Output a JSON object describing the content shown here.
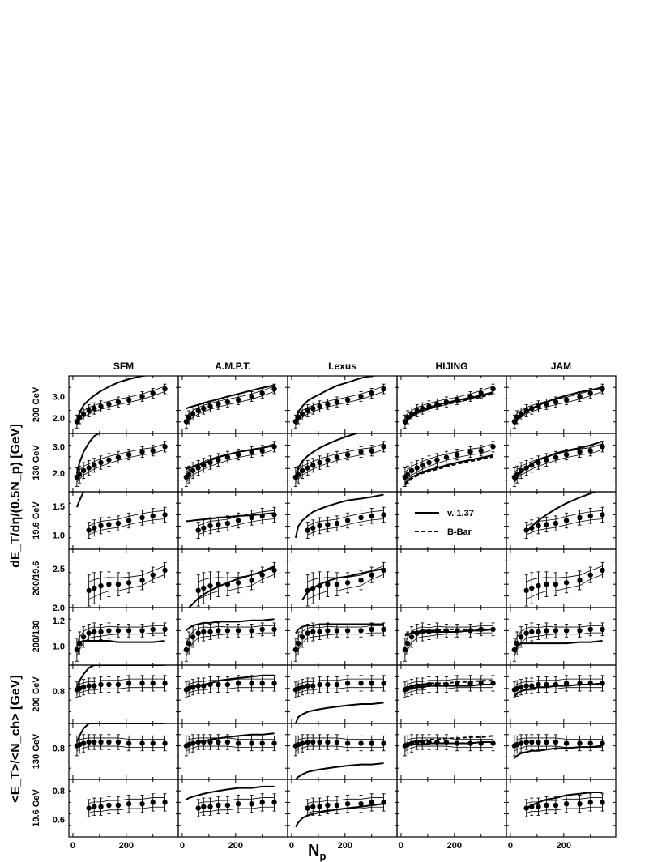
{
  "chart_data": {
    "type": "scatter",
    "title": "",
    "columns": [
      "SFM",
      "A.M.P.T.",
      "Lexus",
      "HIJING",
      "JAM"
    ],
    "xlabel": "N",
    "xlabel_sub": "p",
    "xlim": [
      -15,
      395
    ],
    "x_ticks": [
      "0",
      "200"
    ],
    "ylabel_upper": "dE_T/dη/(0.5N_p) [GeV]",
    "ylabel_lower": "<E_T>/<N_ch> [GeV]",
    "legend": {
      "placement": "inside HIJING 19.6 GeV panel",
      "entries": [
        "v. 1.37",
        "B-Bar"
      ]
    },
    "x": [
      15,
      25,
      40,
      60,
      80,
      105,
      135,
      170,
      210,
      260,
      300,
      345
    ],
    "rows": [
      {
        "label": "200 GeV",
        "ylim": [
          1.3,
          3.95
        ],
        "ticks": [
          "2.0",
          "3.0"
        ],
        "start": 0,
        "y": [
          1.85,
          2.05,
          2.2,
          2.35,
          2.45,
          2.55,
          2.65,
          2.75,
          2.85,
          3.0,
          3.15,
          3.35
        ],
        "err": [
          0.3,
          0.3,
          0.28,
          0.28,
          0.26,
          0.25,
          0.24,
          0.23,
          0.22,
          0.22,
          0.22,
          0.22
        ],
        "models": [
          {
            "name": "SFM",
            "y": [
              1.85,
              2.25,
              2.6,
              2.85,
              3.05,
              3.25,
              3.45,
              3.65,
              3.8,
              3.95,
              4.0,
              4.0
            ]
          },
          {
            "name": "A.M.P.T.",
            "y": [
              2.45,
              2.5,
              2.55,
              2.62,
              2.7,
              2.78,
              2.88,
              3.0,
              3.12,
              3.28,
              3.4,
              3.52
            ]
          },
          {
            "name": "Lexus",
            "y": [
              1.9,
              2.3,
              2.55,
              2.8,
              2.95,
              3.1,
              3.3,
              3.5,
              3.65,
              3.85,
              3.95,
              4.0
            ]
          },
          {
            "name": "HIJING",
            "y": [
              1.75,
              1.95,
              2.15,
              2.3,
              2.4,
              2.5,
              2.6,
              2.72,
              2.82,
              2.95,
              3.05,
              3.2
            ]
          },
          {
            "name": "HIJING B-Bar",
            "y": [
              1.7,
              1.9,
              2.1,
              2.25,
              2.35,
              2.45,
              2.55,
              2.65,
              2.75,
              2.88,
              2.98,
              3.12
            ]
          },
          {
            "name": "JAM",
            "y": [
              1.7,
              1.9,
              2.1,
              2.3,
              2.45,
              2.6,
              2.75,
              2.9,
              3.05,
              3.2,
              3.3,
              3.4
            ]
          }
        ]
      },
      {
        "label": "130 GeV",
        "ylim": [
          1.3,
          3.5
        ],
        "ticks": [
          "2.0",
          "3.0"
        ],
        "start": 0,
        "y": [
          1.85,
          1.95,
          2.1,
          2.2,
          2.3,
          2.4,
          2.5,
          2.6,
          2.7,
          2.8,
          2.85,
          3.0
        ],
        "err": [
          0.35,
          0.32,
          0.3,
          0.28,
          0.26,
          0.25,
          0.24,
          0.22,
          0.2,
          0.2,
          0.2,
          0.2
        ],
        "models": [
          {
            "name": "SFM",
            "y": [
              2.0,
              2.4,
              2.8,
              3.15,
              3.4,
              3.55,
              3.6,
              3.6,
              3.6,
              3.6,
              3.6,
              3.6
            ]
          },
          {
            "name": "A.M.P.T.",
            "y": [
              2.15,
              2.2,
              2.25,
              2.3,
              2.38,
              2.48,
              2.6,
              2.7,
              2.8,
              2.88,
              2.95,
              3.05
            ]
          },
          {
            "name": "Lexus",
            "y": [
              1.85,
              2.2,
              2.45,
              2.65,
              2.8,
              2.95,
              3.1,
              3.25,
              3.4,
              3.55,
              3.6,
              3.6
            ]
          },
          {
            "name": "HIJING",
            "y": [
              1.6,
              1.7,
              1.85,
              1.95,
              2.05,
              2.12,
              2.2,
              2.3,
              2.4,
              2.5,
              2.58,
              2.68
            ]
          },
          {
            "name": "HIJING B-Bar",
            "y": [
              1.55,
              1.65,
              1.8,
              1.9,
              2.0,
              2.07,
              2.15,
              2.25,
              2.35,
              2.45,
              2.52,
              2.62
            ]
          },
          {
            "name": "JAM",
            "y": [
              1.7,
              1.85,
              2.05,
              2.2,
              2.35,
              2.5,
              2.6,
              2.75,
              2.85,
              2.95,
              3.05,
              3.2
            ]
          }
        ]
      },
      {
        "label": "19.6 GeV",
        "ylim": [
          0.75,
          1.75
        ],
        "ticks": [
          "1.0",
          "1.5"
        ],
        "start": 3,
        "y": [
          null,
          null,
          null,
          1.08,
          1.12,
          1.16,
          1.18,
          1.2,
          1.25,
          1.3,
          1.33,
          1.35
        ],
        "err": [
          0,
          0,
          0,
          0.14,
          0.14,
          0.14,
          0.13,
          0.13,
          0.13,
          0.13,
          0.13,
          0.13
        ],
        "models": [
          {
            "name": "SFM",
            "y": [
              1.48,
              1.6,
              1.75,
              1.8,
              1.8,
              1.8,
              1.8,
              1.8,
              1.8,
              1.8,
              1.8,
              1.8
            ]
          },
          {
            "name": "A.M.P.T.",
            "y": [
              1.24,
              1.24,
              1.25,
              1.26,
              1.27,
              1.28,
              1.3,
              1.31,
              1.33,
              1.34,
              1.36,
              1.38
            ]
          },
          {
            "name": "Lexus",
            "y": [
              0.95,
              1.15,
              1.25,
              1.33,
              1.4,
              1.45,
              1.5,
              1.55,
              1.6,
              1.63,
              1.66,
              1.7
            ]
          },
          {
            "name": "HIJING",
            "y": []
          },
          {
            "name": "HIJING B-Bar",
            "y": []
          },
          {
            "name": "JAM",
            "y": [
              null,
              null,
              null,
              1.05,
              1.15,
              1.25,
              1.35,
              1.45,
              1.55,
              1.65,
              1.72,
              1.8
            ]
          }
        ]
      },
      {
        "label": "200/19.6",
        "ylim": [
          2.0,
          2.75
        ],
        "ticks": [
          "2.0",
          "2.5"
        ],
        "start": 3,
        "y": [
          null,
          null,
          null,
          2.22,
          2.25,
          2.28,
          2.3,
          2.3,
          2.32,
          2.35,
          2.42,
          2.48
        ],
        "err": [
          0,
          0,
          0,
          0.2,
          0.2,
          0.18,
          0.16,
          0.15,
          0.13,
          0.12,
          0.1,
          0.1
        ],
        "models": [
          {
            "name": "SFM",
            "y": []
          },
          {
            "name": "A.M.P.T.",
            "y": [
              null,
              2.0,
              2.05,
              2.12,
              2.17,
              2.22,
              2.27,
              2.32,
              2.37,
              2.42,
              2.46,
              2.52
            ]
          },
          {
            "name": "Lexus",
            "y": [
              null,
              null,
              2.1,
              2.2,
              2.25,
              2.3,
              2.34,
              2.38,
              2.4,
              2.44,
              2.47,
              2.5
            ]
          },
          {
            "name": "HIJING",
            "y": []
          },
          {
            "name": "HIJING B-Bar",
            "y": []
          },
          {
            "name": "JAM",
            "y": []
          }
        ]
      },
      {
        "label": "200/130",
        "ylim": [
          0.85,
          1.3
        ],
        "ticks": [
          "1.0",
          "1.2"
        ],
        "start": 0,
        "y": [
          0.97,
          1.02,
          1.07,
          1.1,
          1.11,
          1.11,
          1.12,
          1.12,
          1.12,
          1.12,
          1.13,
          1.13
        ],
        "err": [
          0.09,
          0.09,
          0.08,
          0.07,
          0.07,
          0.06,
          0.06,
          0.05,
          0.05,
          0.05,
          0.05,
          0.05
        ],
        "models": [
          {
            "name": "SFM",
            "y": [
              1.0,
              1.03,
              1.04,
              1.04,
              1.04,
              1.04,
              1.04,
              1.03,
              1.03,
              1.03,
              1.03,
              1.04
            ]
          },
          {
            "name": "A.M.P.T.",
            "y": [
              1.12,
              1.14,
              1.16,
              1.17,
              1.18,
              1.18,
              1.19,
              1.19,
              1.19,
              1.2,
              1.2,
              1.21
            ]
          },
          {
            "name": "Lexus",
            "y": [
              1.1,
              1.13,
              1.15,
              1.16,
              1.16,
              1.17,
              1.17,
              1.17,
              1.17,
              1.17,
              1.17,
              1.17
            ]
          },
          {
            "name": "HIJING",
            "y": [
              1.08,
              1.09,
              1.1,
              1.1,
              1.11,
              1.11,
              1.11,
              1.11,
              1.11,
              1.12,
              1.12,
              1.13
            ]
          },
          {
            "name": "HIJING B-Bar",
            "y": [
              1.09,
              1.1,
              1.11,
              1.11,
              1.12,
              1.12,
              1.12,
              1.13,
              1.13,
              1.13,
              1.13,
              1.13
            ]
          },
          {
            "name": "JAM",
            "y": [
              0.95,
              1.0,
              1.02,
              1.02,
              1.02,
              1.02,
              1.02,
              1.02,
              1.02,
              1.03,
              1.03,
              1.04
            ]
          }
        ]
      },
      {
        "label": "200 GeV",
        "ylim": [
          0.55,
          1.0
        ],
        "ticks": [
          "0.8"
        ],
        "start": 0,
        "y": [
          0.81,
          0.82,
          0.83,
          0.84,
          0.84,
          0.85,
          0.85,
          0.85,
          0.86,
          0.86,
          0.86,
          0.86
        ],
        "err": [
          0.06,
          0.06,
          0.06,
          0.06,
          0.06,
          0.06,
          0.06,
          0.06,
          0.06,
          0.06,
          0.06,
          0.06
        ],
        "models": [
          {
            "name": "SFM",
            "y": [
              0.83,
              0.88,
              0.93,
              0.98,
              1.0,
              1.0,
              1.0,
              1.0,
              1.0,
              1.0,
              1.0,
              1.0
            ]
          },
          {
            "name": "A.M.P.T.",
            "y": [
              0.8,
              0.81,
              0.83,
              0.84,
              0.85,
              0.86,
              0.88,
              0.89,
              0.9,
              0.91,
              0.92,
              0.92
            ]
          },
          {
            "name": "Lexus",
            "y": [
              0.55,
              0.6,
              0.62,
              0.64,
              0.65,
              0.66,
              0.67,
              0.68,
              0.69,
              0.7,
              0.7,
              0.71
            ]
          },
          {
            "name": "HIJING",
            "y": [
              0.8,
              0.81,
              0.82,
              0.83,
              0.83,
              0.84,
              0.84,
              0.84,
              0.84,
              0.84,
              0.85,
              0.85
            ]
          },
          {
            "name": "HIJING B-Bar",
            "y": [
              0.82,
              0.83,
              0.84,
              0.85,
              0.85,
              0.86,
              0.86,
              0.86,
              0.87,
              0.87,
              0.88,
              0.88
            ]
          },
          {
            "name": "JAM",
            "y": [
              0.76,
              0.78,
              0.8,
              0.81,
              0.82,
              0.83,
              0.83,
              0.84,
              0.84,
              0.85,
              0.85,
              0.86
            ]
          }
        ]
      },
      {
        "label": "130 GeV",
        "ylim": [
          0.55,
          1.0
        ],
        "ticks": [
          "0.8"
        ],
        "start": 0,
        "y": [
          0.82,
          0.83,
          0.84,
          0.85,
          0.85,
          0.85,
          0.85,
          0.85,
          0.84,
          0.84,
          0.84,
          0.84
        ],
        "err": [
          0.08,
          0.07,
          0.07,
          0.06,
          0.06,
          0.06,
          0.06,
          0.06,
          0.06,
          0.06,
          0.06,
          0.06
        ],
        "models": [
          {
            "name": "SFM",
            "y": [
              0.85,
              0.9,
              0.96,
              1.0,
              1.0,
              1.0,
              1.0,
              1.0,
              1.0,
              1.0,
              1.0,
              1.0
            ]
          },
          {
            "name": "A.M.P.T.",
            "y": [
              0.82,
              0.83,
              0.84,
              0.85,
              0.86,
              0.87,
              0.88,
              0.89,
              0.9,
              0.91,
              0.91,
              0.92
            ]
          },
          {
            "name": "Lexus",
            "y": [
              0.55,
              0.57,
              0.59,
              0.61,
              0.62,
              0.63,
              0.64,
              0.65,
              0.66,
              0.67,
              0.67,
              0.68
            ]
          },
          {
            "name": "HIJING",
            "y": [
              0.81,
              0.82,
              0.83,
              0.83,
              0.83,
              0.84,
              0.84,
              0.84,
              0.84,
              0.84,
              0.85,
              0.85
            ]
          },
          {
            "name": "HIJING B-Bar",
            "y": [
              0.83,
              0.84,
              0.85,
              0.86,
              0.86,
              0.87,
              0.87,
              0.88,
              0.88,
              0.89,
              0.89,
              0.9
            ]
          },
          {
            "name": "JAM",
            "y": [
              0.72,
              0.74,
              0.76,
              0.77,
              0.78,
              0.78,
              0.79,
              0.8,
              0.8,
              0.81,
              0.81,
              0.82
            ]
          }
        ]
      },
      {
        "label": "19.6 GeV",
        "ylim": [
          0.48,
          0.88
        ],
        "ticks": [
          "0.6",
          "0.8"
        ],
        "start": 3,
        "y": [
          null,
          null,
          null,
          0.68,
          0.69,
          0.69,
          0.7,
          0.7,
          0.71,
          0.71,
          0.72,
          0.72
        ],
        "err": [
          0,
          0,
          0,
          0.06,
          0.06,
          0.06,
          0.06,
          0.06,
          0.06,
          0.06,
          0.06,
          0.06
        ],
        "models": [
          {
            "name": "SFM",
            "y": []
          },
          {
            "name": "A.M.P.T.",
            "y": [
              0.74,
              0.75,
              0.76,
              0.77,
              0.78,
              0.79,
              0.8,
              0.81,
              0.82,
              0.82,
              0.83,
              0.83
            ]
          },
          {
            "name": "Lexus",
            "y": [
              0.55,
              0.58,
              0.61,
              0.63,
              0.64,
              0.65,
              0.66,
              0.67,
              0.68,
              0.69,
              0.7,
              0.71
            ]
          },
          {
            "name": "HIJING",
            "y": []
          },
          {
            "name": "HIJING B-Bar",
            "y": []
          },
          {
            "name": "JAM",
            "y": [
              null,
              null,
              null,
              0.68,
              0.7,
              0.72,
              0.74,
              0.75,
              0.77,
              0.78,
              0.79,
              0.79
            ]
          }
        ]
      }
    ]
  }
}
